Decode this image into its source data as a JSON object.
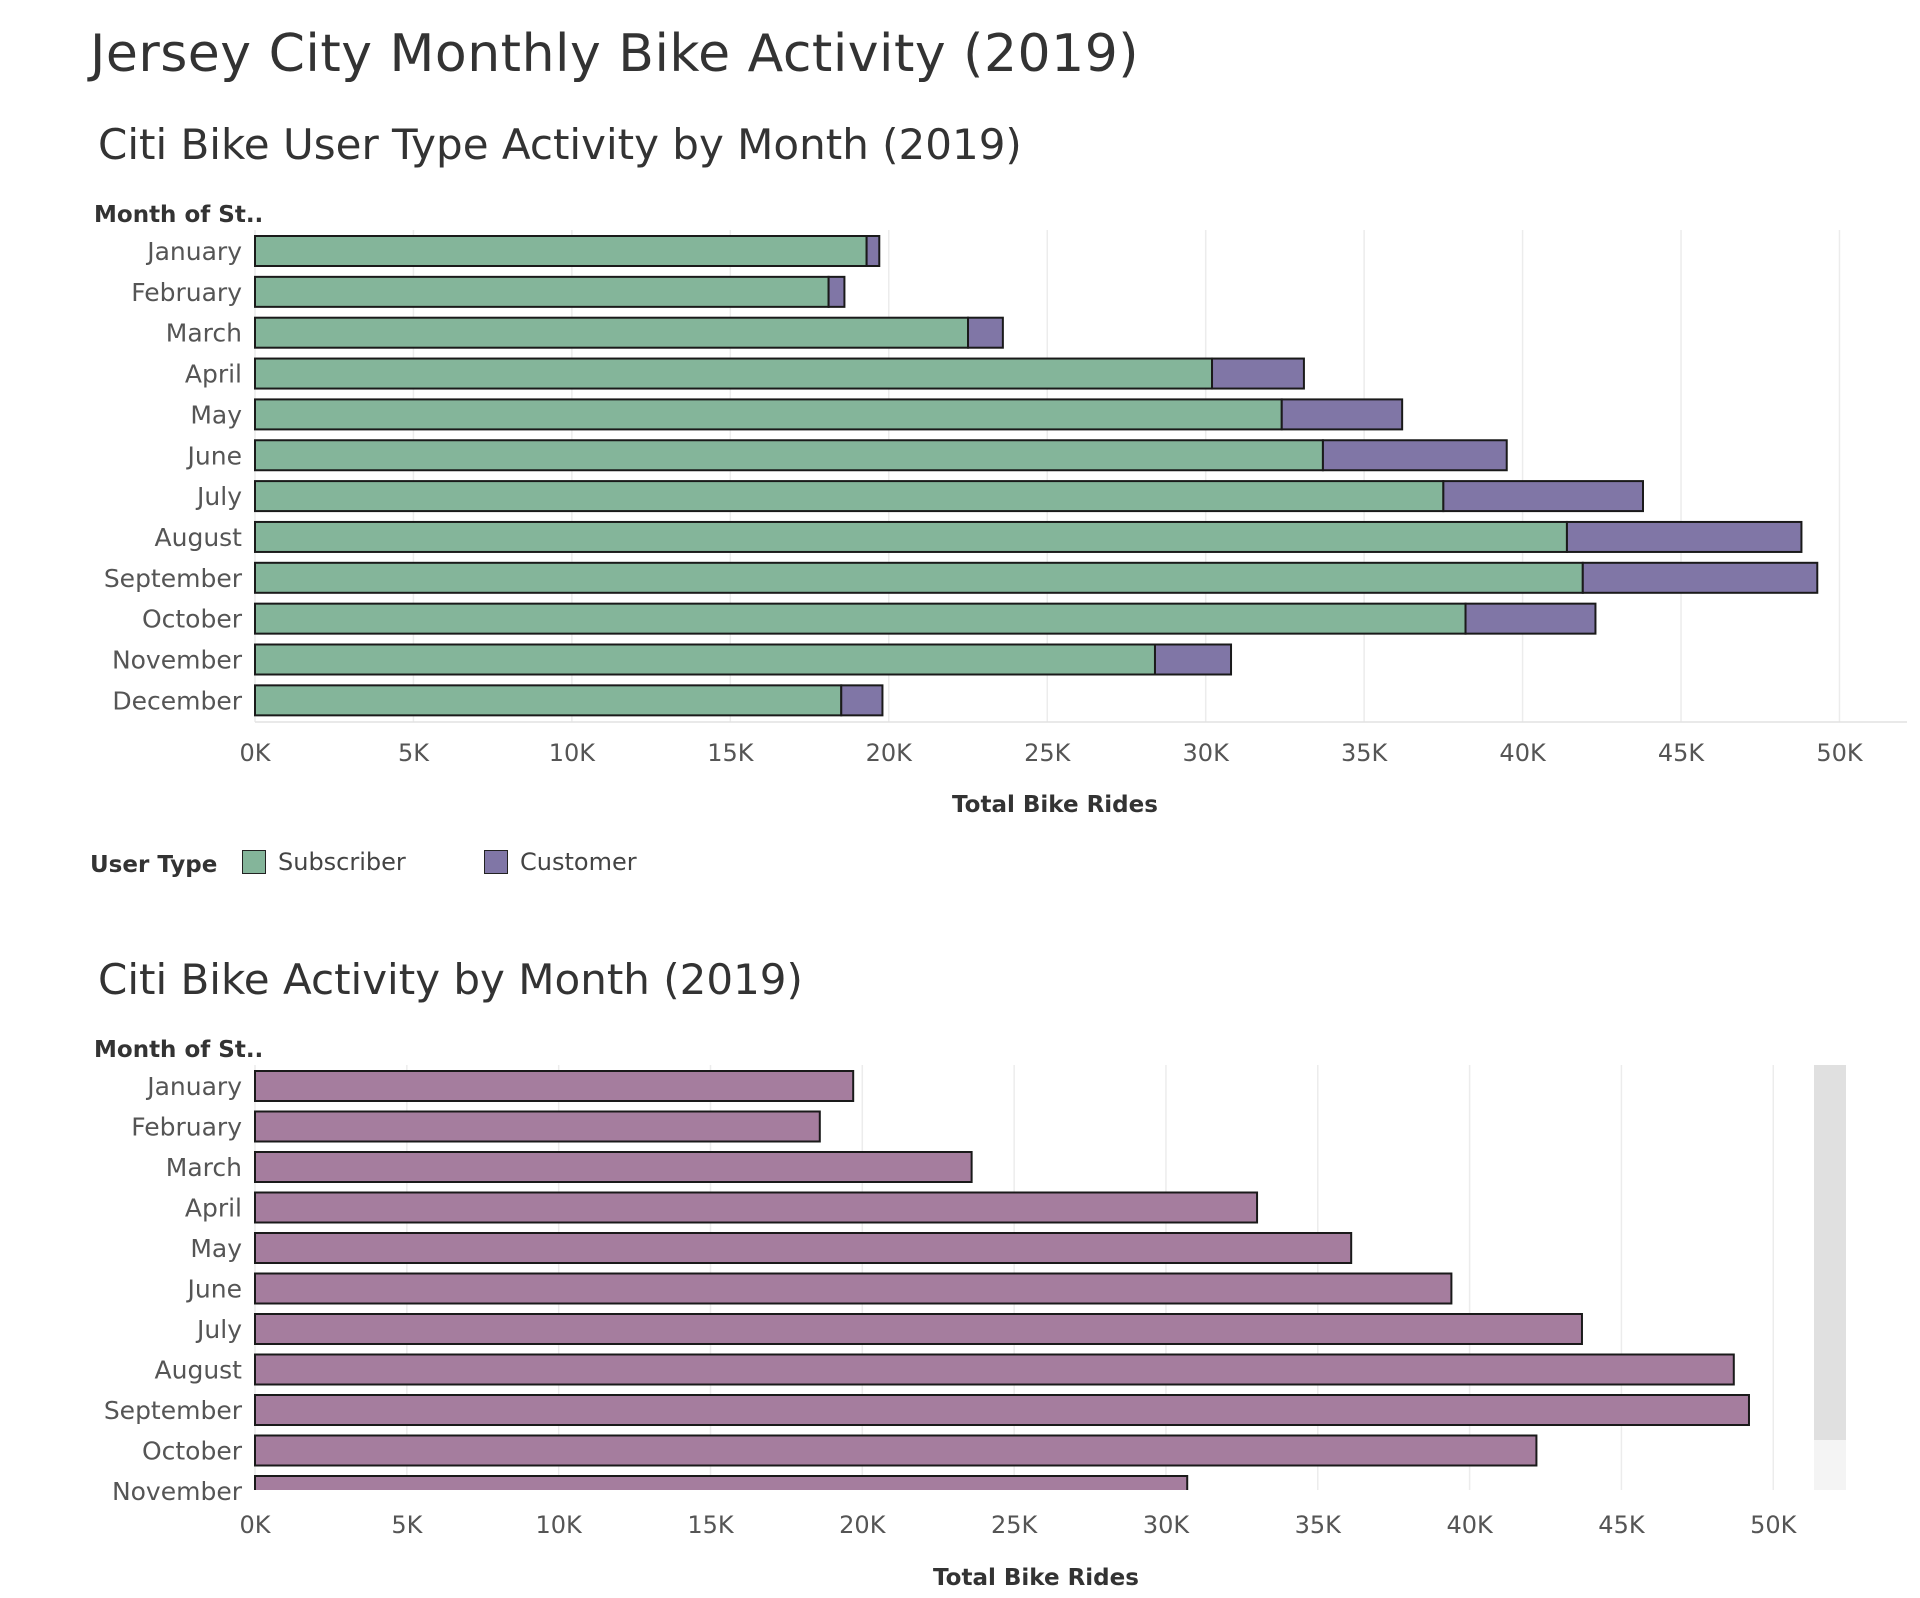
{
  "dashboard_title": "Jersey City Monthly Bike Activity (2019)",
  "legend": {
    "title": "User Type",
    "items": [
      {
        "label": "Subscriber",
        "color": "#84b59a"
      },
      {
        "label": "Customer",
        "color": "#8076a6"
      }
    ]
  },
  "chart_data": [
    {
      "type": "bar",
      "orientation": "horizontal",
      "stacked": true,
      "title": "Citi Bike User Type Activity by Month (2019)",
      "ylabel": "Month of St..",
      "xlabel": "Total Bike Rides",
      "categories": [
        "January",
        "February",
        "March",
        "April",
        "May",
        "June",
        "July",
        "August",
        "September",
        "October",
        "November",
        "December"
      ],
      "series": [
        {
          "name": "Subscriber",
          "color": "#84b59a",
          "values": [
            19300,
            18100,
            22500,
            30200,
            32400,
            33700,
            37500,
            41400,
            41900,
            38200,
            28400,
            18500
          ]
        },
        {
          "name": "Customer",
          "color": "#8076a6",
          "values": [
            400,
            500,
            1100,
            2900,
            3800,
            5800,
            6300,
            7400,
            7400,
            4100,
            2400,
            1300
          ]
        }
      ],
      "xlim": [
        0,
        51500
      ],
      "ticks": [
        {
          "value": 0,
          "label": "0K"
        },
        {
          "value": 5000,
          "label": "5K"
        },
        {
          "value": 10000,
          "label": "10K"
        },
        {
          "value": 15000,
          "label": "15K"
        },
        {
          "value": 20000,
          "label": "20K"
        },
        {
          "value": 25000,
          "label": "25K"
        },
        {
          "value": 30000,
          "label": "30K"
        },
        {
          "value": 35000,
          "label": "35K"
        },
        {
          "value": 40000,
          "label": "40K"
        },
        {
          "value": 45000,
          "label": "45K"
        },
        {
          "value": 50000,
          "label": "50K"
        }
      ],
      "grid": true
    },
    {
      "type": "bar",
      "orientation": "horizontal",
      "title": "Citi Bike Activity by Month (2019)",
      "ylabel": "Month of St..",
      "xlabel": "Total Bike Rides",
      "categories": [
        "January",
        "February",
        "March",
        "April",
        "May",
        "June",
        "July",
        "August",
        "September",
        "October",
        "November"
      ],
      "series": [
        {
          "color": "#a57d9e",
          "values": [
            19700,
            18600,
            23600,
            33000,
            36100,
            39400,
            43700,
            48700,
            49200,
            42200,
            30700
          ]
        }
      ],
      "xlim": [
        0,
        52000
      ],
      "ticks": [
        {
          "value": 0,
          "label": "0K"
        },
        {
          "value": 5000,
          "label": "5K"
        },
        {
          "value": 10000,
          "label": "10K"
        },
        {
          "value": 15000,
          "label": "15K"
        },
        {
          "value": 20000,
          "label": "20K"
        },
        {
          "value": 25000,
          "label": "25K"
        },
        {
          "value": 30000,
          "label": "30K"
        },
        {
          "value": 35000,
          "label": "35K"
        },
        {
          "value": 40000,
          "label": "40K"
        },
        {
          "value": 45000,
          "label": "45K"
        },
        {
          "value": 50000,
          "label": "50K"
        }
      ],
      "grid": true,
      "scrollable": true
    }
  ]
}
